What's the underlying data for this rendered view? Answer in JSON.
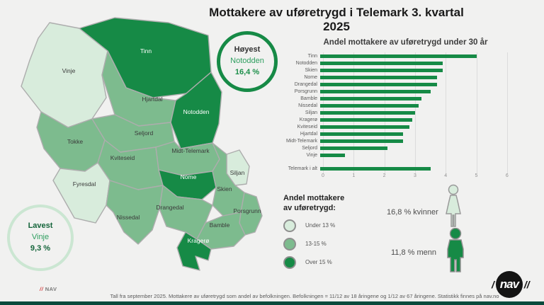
{
  "title": "Mottakere av uføretrygd i Telemark 3. kvartal 2025",
  "colors": {
    "light": "#d8ecdc",
    "medium": "#7dbb8e",
    "dark": "#168a46",
    "bar": "#168a46",
    "badge_light_border": "#cbe6d2",
    "footer_bar": "#0a4a3c",
    "nav_red": "#d23f3f"
  },
  "map": {
    "municipalities": [
      {
        "name": "Vinje",
        "category": "light"
      },
      {
        "name": "Tinn",
        "category": "dark"
      },
      {
        "name": "Hjartdal",
        "category": "medium"
      },
      {
        "name": "Notodden",
        "category": "dark"
      },
      {
        "name": "Seljord",
        "category": "medium"
      },
      {
        "name": "Tokke",
        "category": "medium"
      },
      {
        "name": "Kviteseid",
        "category": "medium"
      },
      {
        "name": "Midt-Telemark",
        "category": "medium"
      },
      {
        "name": "Fyresdal",
        "category": "light"
      },
      {
        "name": "Nome",
        "category": "dark"
      },
      {
        "name": "Siljan",
        "category": "light"
      },
      {
        "name": "Skien",
        "category": "medium"
      },
      {
        "name": "Drangedal",
        "category": "medium"
      },
      {
        "name": "Porsgrunn",
        "category": "medium"
      },
      {
        "name": "Nissedal",
        "category": "medium"
      },
      {
        "name": "Bamble",
        "category": "medium"
      },
      {
        "name": "Kragerø",
        "category": "dark"
      }
    ]
  },
  "badges": {
    "highest": {
      "label": "Høyest",
      "name": "Notodden",
      "value": "16,4 %"
    },
    "lowest": {
      "label": "Lavest",
      "name": "Vinje",
      "value": "9,3 %"
    }
  },
  "chart_data": {
    "type": "bar",
    "orientation": "horizontal",
    "title": "Andel mottakere av uføretrygd under 30 år",
    "categories": [
      "Tinn",
      "Notodden",
      "Skien",
      "Nome",
      "Drangedal",
      "Porsgrunn",
      "Bamble",
      "Nissedal",
      "Siljan",
      "Kragerø",
      "Kviteseid",
      "Hjartdal",
      "Midt-Telemark",
      "Seljord",
      "Vinje"
    ],
    "values": [
      5.1,
      4.0,
      4.0,
      3.8,
      3.8,
      3.6,
      3.3,
      3.2,
      3.1,
      3.0,
      2.9,
      2.7,
      2.7,
      2.2,
      0.8
    ],
    "total": {
      "label": "Telemark i alt",
      "value": 3.6
    },
    "xlim": [
      0,
      6
    ],
    "xticks": [
      0,
      1,
      2,
      3,
      4,
      5,
      6
    ],
    "xlabel": "",
    "ylabel": "",
    "grid": true,
    "legend": false
  },
  "legend": {
    "title_line1": "Andel mottakere",
    "title_line2": "av uføretrygd:",
    "items": [
      {
        "label": "Under 13 %",
        "category": "light"
      },
      {
        "label": "13-15 %",
        "category": "medium"
      },
      {
        "label": "Over 15 %",
        "category": "dark"
      }
    ]
  },
  "gender": {
    "women": "16,8 % kvinner",
    "men": "11,8 % menn"
  },
  "footnote": "Tall fra september 2025. Mottakere av uføretrygd som andel av befolkningen. Befolkningen = 11/12 av 18 åringene og 1/12 av 67 åringene. Statistikk finnes på nav.no",
  "nav_small_slashes": "//",
  "nav_small_text": "NAV",
  "nav_logo_slash_left": "/",
  "nav_logo_text": "nav",
  "nav_logo_slash_right": "//"
}
